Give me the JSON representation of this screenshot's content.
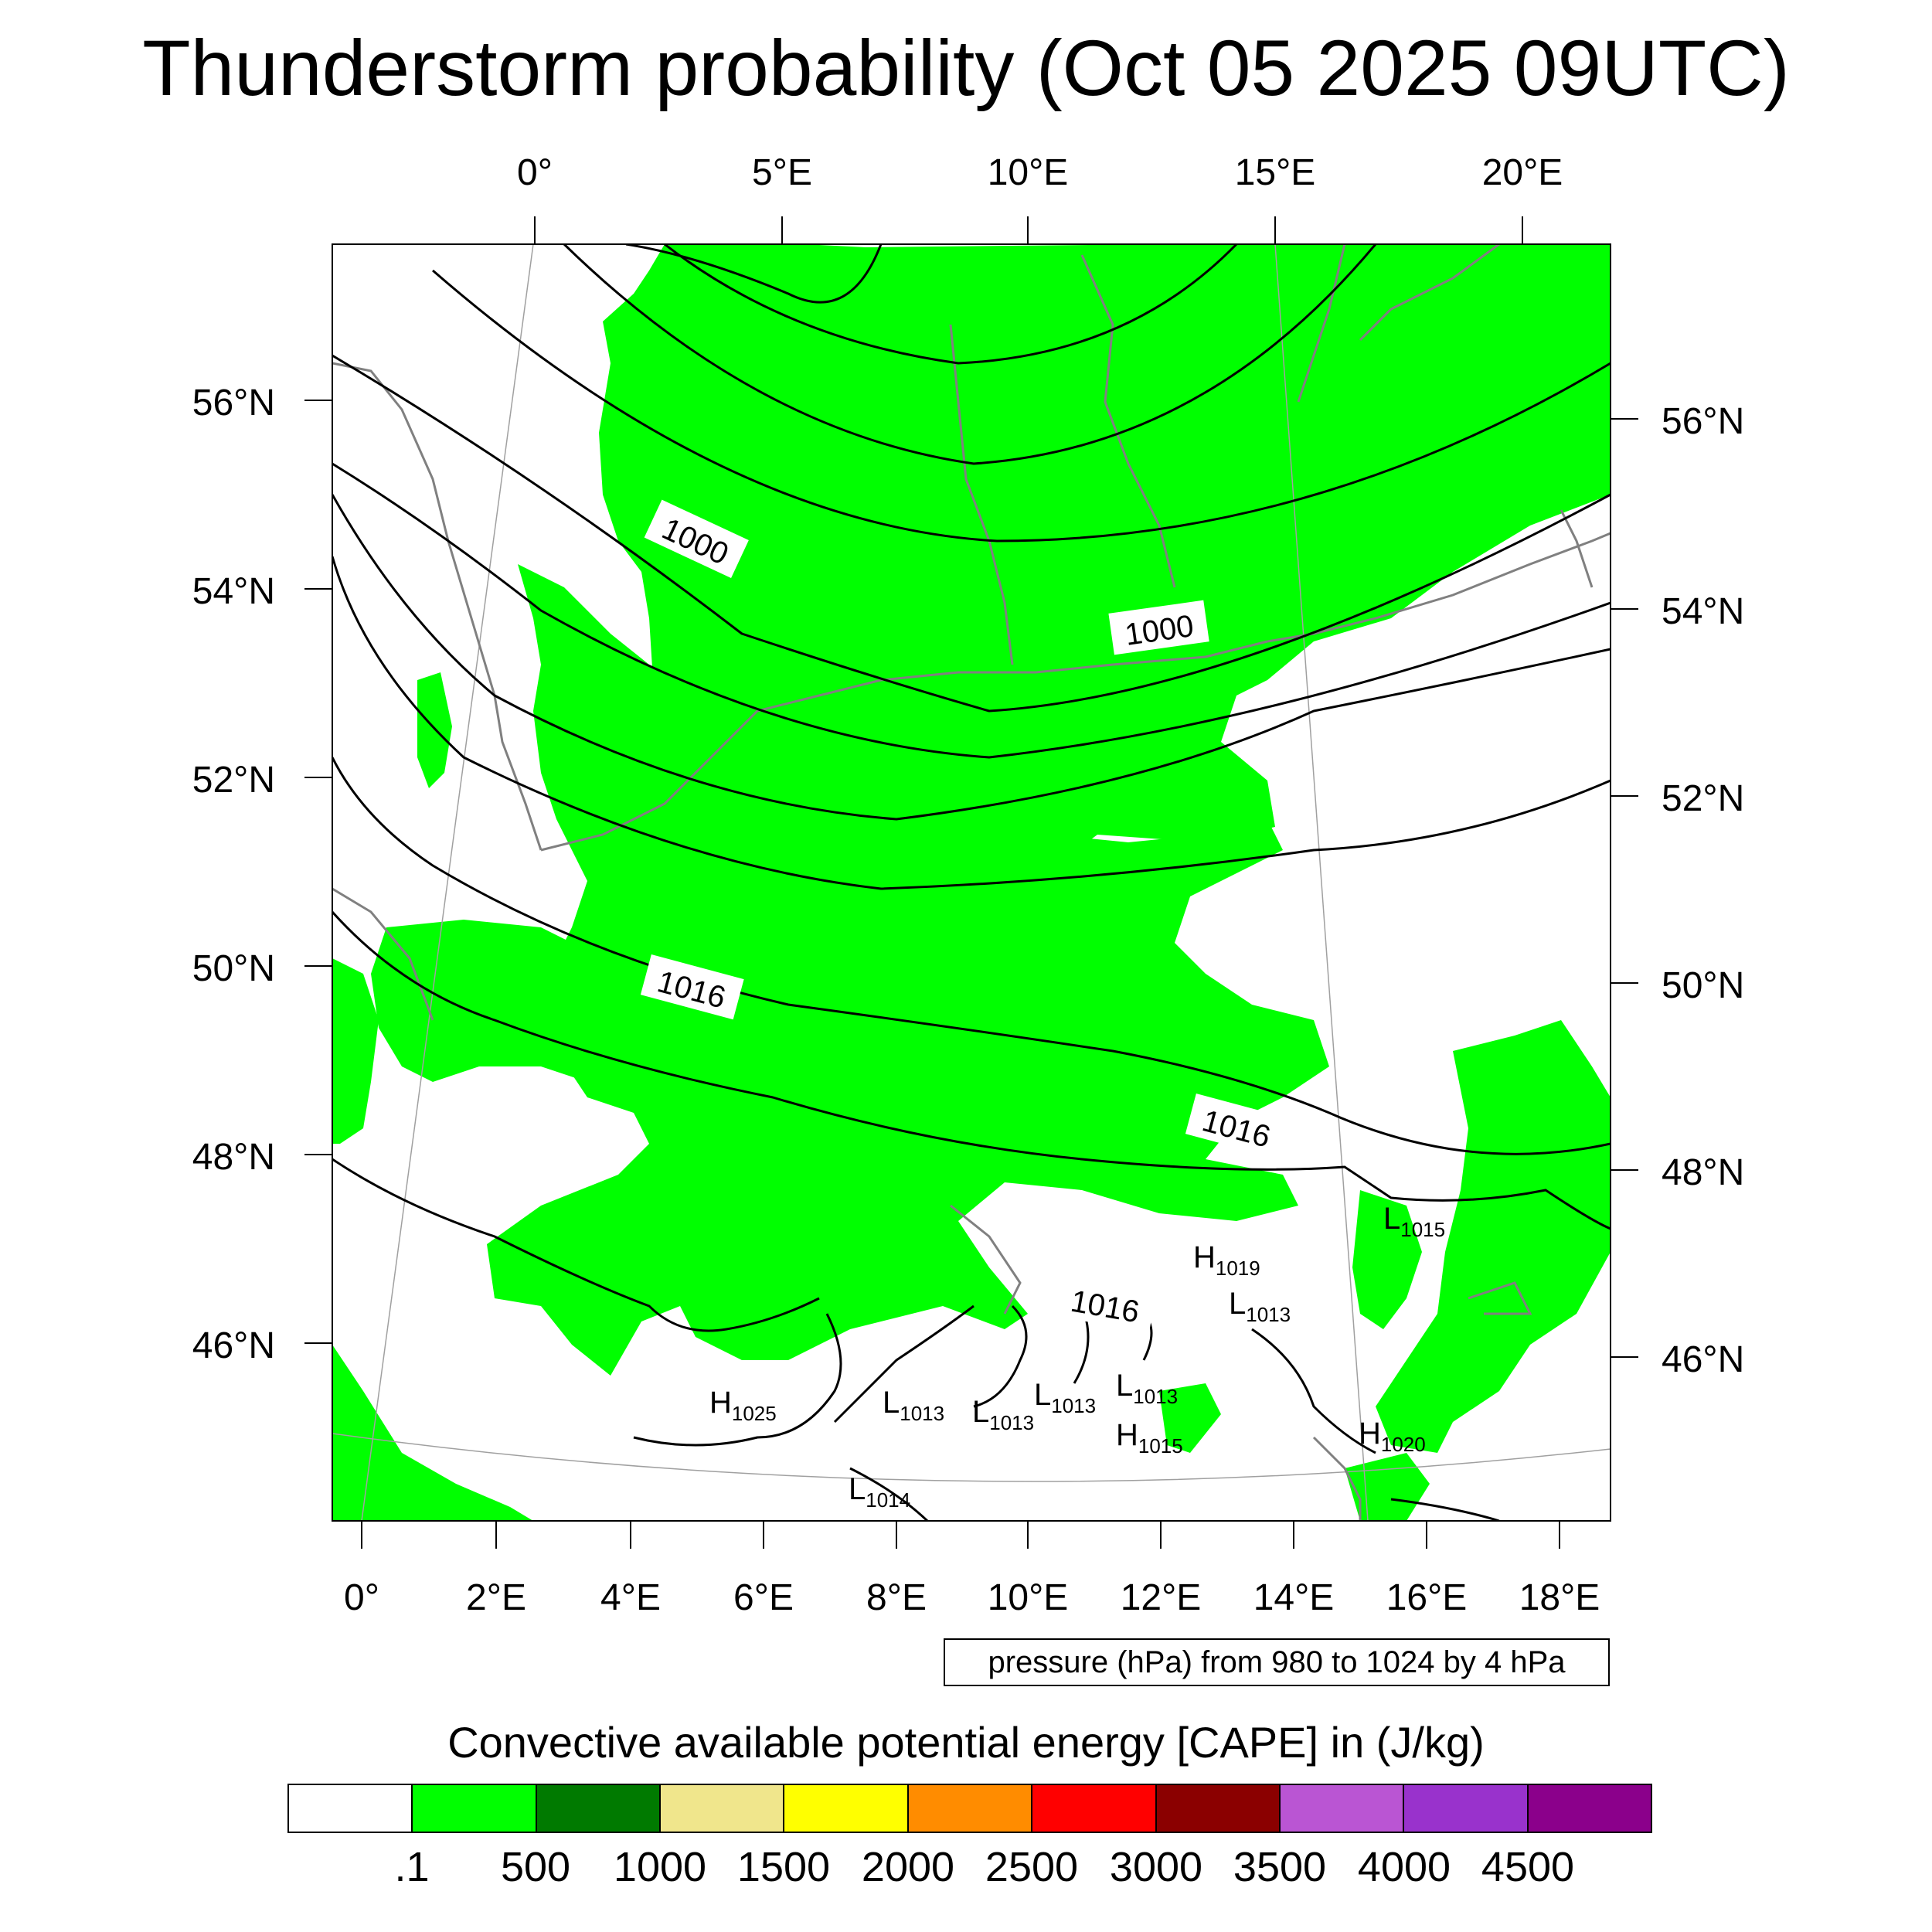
{
  "title": "Thunderstorm probability (Oct 05 2025 09UTC)",
  "axes": {
    "top_lon": [
      "0°",
      "5°E",
      "10°E",
      "15°E",
      "20°E"
    ],
    "bottom_lon": [
      "0°",
      "2°E",
      "4°E",
      "6°E",
      "8°E",
      "10°E",
      "12°E",
      "14°E",
      "16°E",
      "18°E"
    ],
    "left_lat": [
      "56°N",
      "54°N",
      "52°N",
      "50°N",
      "48°N",
      "46°N"
    ],
    "right_lat": [
      "56°N",
      "54°N",
      "52°N",
      "50°N",
      "48°N",
      "46°N"
    ]
  },
  "isobar_labels": [
    "1000",
    "1000",
    "1016",
    "1016",
    "1016"
  ],
  "pressure_centers": [
    {
      "type": "L",
      "value": "1015"
    },
    {
      "type": "H",
      "value": "1019"
    },
    {
      "type": "L",
      "value": "1013"
    },
    {
      "type": "H",
      "value": "1025"
    },
    {
      "type": "L",
      "value": "1013"
    },
    {
      "type": "L",
      "value": "1013"
    },
    {
      "type": "L",
      "value": "1013"
    },
    {
      "type": "L",
      "value": "1013"
    },
    {
      "type": "H",
      "value": "1015"
    },
    {
      "type": "H",
      "value": "1020"
    },
    {
      "type": "L",
      "value": "1014"
    }
  ],
  "pressure_note": "pressure (hPa) from 980 to 1024 by 4 hPa",
  "colorbar": {
    "title": "Convective available potential energy [CAPE] in (J/kg)",
    "colors": [
      "#ffffff",
      "#00ff00",
      "#007a00",
      "#f0e68c",
      "#ffff00",
      "#ff8c00",
      "#ff0000",
      "#8b0000",
      "#ba55d3",
      "#9932cc",
      "#8b008b"
    ],
    "labels": [
      ".1",
      "500",
      "1000",
      "1500",
      "2000",
      "2500",
      "3000",
      "3500",
      "4000",
      "4500"
    ]
  },
  "colors": {
    "cape_fill": "#00ff00",
    "isobar": "#000000",
    "coastline": "#808080",
    "graticule": "#a0a0a0"
  }
}
